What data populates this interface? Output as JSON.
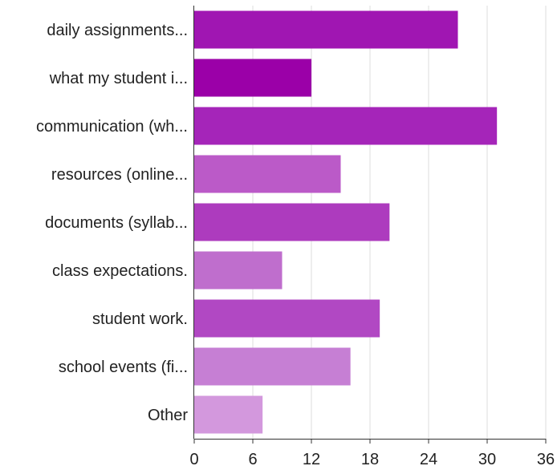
{
  "chart_data": {
    "type": "bar",
    "orientation": "horizontal",
    "categories": [
      "daily assignments...",
      "what my student i...",
      "communication (wh...",
      "resources (online...",
      "documents (syllab...",
      "class expectations.",
      "student work.",
      "school events (fi...",
      "Other"
    ],
    "values": [
      27,
      12,
      31,
      15,
      20,
      9,
      19,
      16,
      7
    ],
    "colors": [
      "#a016b2",
      "#9b00a8",
      "#a525b9",
      "#bb5ac8",
      "#ad3bbe",
      "#bf6ecd",
      "#b148c3",
      "#c67fd4",
      "#d398dd"
    ],
    "xlim": [
      0,
      36
    ],
    "xticks": [
      0,
      6,
      12,
      18,
      24,
      30,
      36
    ],
    "grid": true,
    "title": "",
    "xlabel": "",
    "ylabel": ""
  }
}
